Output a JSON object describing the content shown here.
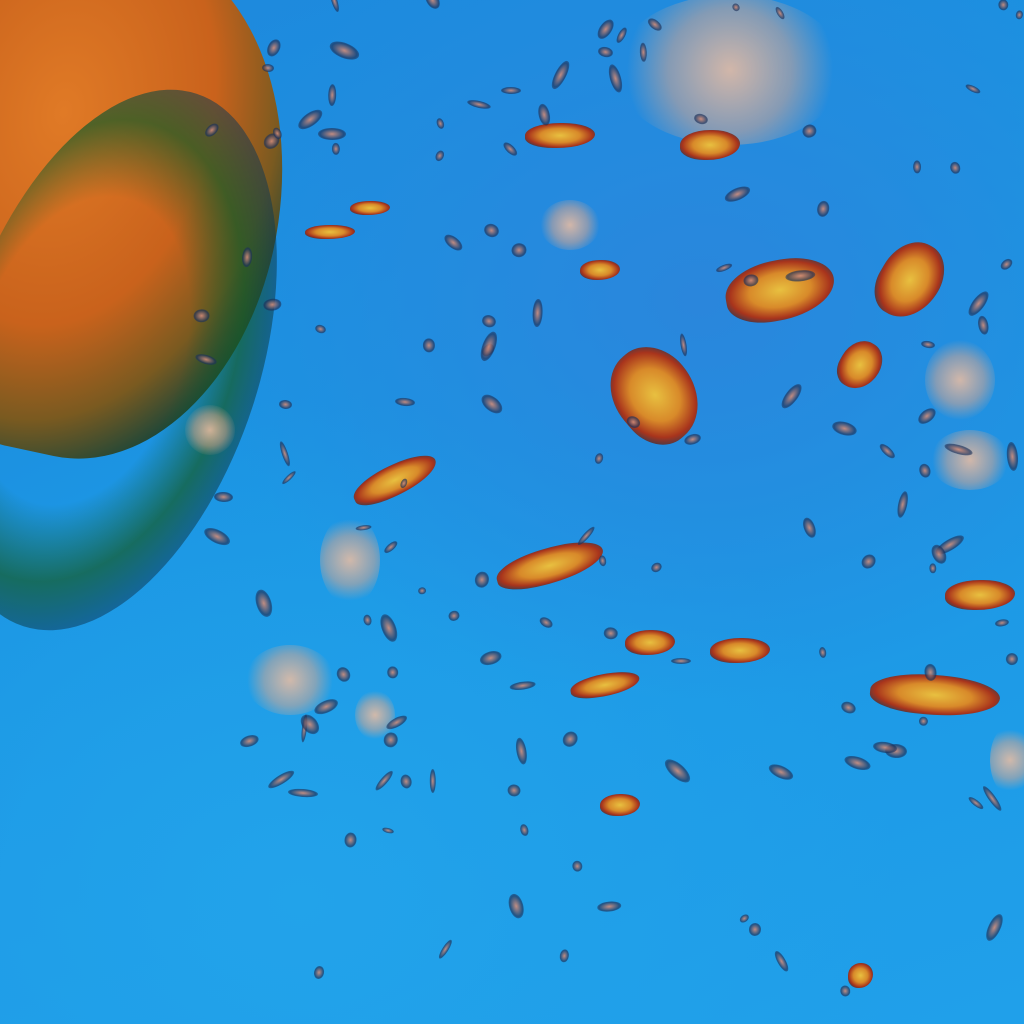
{
  "image": {
    "kind": "false-color satellite view",
    "colors": {
      "ocean": "#1b95e3",
      "land": "#d86e22",
      "convective_cloud": "#e8c040",
      "cloud_edge": "#a8341c",
      "thin_cloud": "#f0c0a0"
    }
  },
  "elements": [
    "landmass",
    "coastline",
    "cloud-clusters",
    "thin-cloud-patches",
    "small-cloud-specks"
  ]
}
